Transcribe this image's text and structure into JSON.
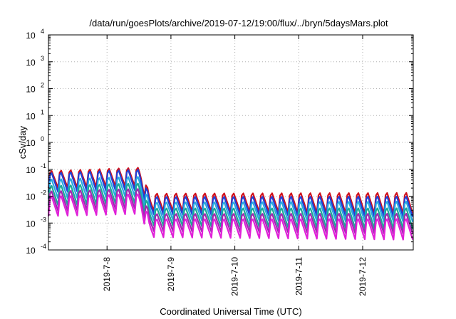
{
  "chart_data": {
    "type": "line",
    "title": "/data/run/goesPlots/archive/2019-07-12/19:00/flux/../bryn/5daysMars.plot",
    "xlabel": "Coordinated Universal Time (UTC)",
    "ylabel": "cSv/day",
    "yscale": "log",
    "ylim": [
      0.0001,
      10000
    ],
    "y_ticks": [
      {
        "base": "10",
        "exp": "-4",
        "value": 0.0001
      },
      {
        "base": "10",
        "exp": "-3",
        "value": 0.001
      },
      {
        "base": "10",
        "exp": "-2",
        "value": 0.01
      },
      {
        "base": "10",
        "exp": "-1",
        "value": 0.1
      },
      {
        "base": "10",
        "exp": "0",
        "value": 1
      },
      {
        "base": "10",
        "exp": "1",
        "value": 10
      },
      {
        "base": "10",
        "exp": "2",
        "value": 100
      },
      {
        "base": "10",
        "exp": "3",
        "value": 1000
      },
      {
        "base": "10",
        "exp": "4",
        "value": 10000
      }
    ],
    "xlim": [
      "2019-07-07T02:00",
      "2019-07-12T19:00"
    ],
    "x_ticks": [
      {
        "label": "2019-7-8",
        "value": "2019-07-08"
      },
      {
        "label": "2019-7-9",
        "value": "2019-07-09"
      },
      {
        "label": "2019-7-10",
        "value": "2019-07-10"
      },
      {
        "label": "2019-7-11",
        "value": "2019-07-11"
      },
      {
        "label": "2019-7-12",
        "value": "2019-07-12"
      }
    ],
    "grid": true,
    "series": [
      {
        "color": "#d0101c",
        "x": [
          "2019-07-07T02:00",
          "2019-07-08T12:30",
          "2019-07-08T16:00",
          "2019-07-12T19:00"
        ],
        "peak": [
          0.11,
          0.15,
          0.016,
          0.018
        ],
        "trough": [
          0.02,
          0.024,
          0.0028,
          0.0022
        ]
      },
      {
        "color": "#1f3fd6",
        "x": [
          "2019-07-07T02:00",
          "2019-07-08T12:30",
          "2019-07-08T16:00",
          "2019-07-12T19:00"
        ],
        "peak": [
          0.095,
          0.13,
          0.012,
          0.013
        ],
        "trough": [
          0.014,
          0.017,
          0.0021,
          0.0017
        ]
      },
      {
        "color": "#26a9e0",
        "x": [
          "2019-07-07T02:00",
          "2019-07-08T12:30",
          "2019-07-08T16:00",
          "2019-07-12T19:00"
        ],
        "peak": [
          0.055,
          0.07,
          0.0075,
          0.0085
        ],
        "trough": [
          0.008,
          0.01,
          0.0013,
          0.0011
        ]
      },
      {
        "color": "#1aa898",
        "x": [
          "2019-07-07T02:00",
          "2019-07-08T12:30",
          "2019-07-08T16:00",
          "2019-07-12T19:00"
        ],
        "peak": [
          0.032,
          0.04,
          0.0045,
          0.0048
        ],
        "trough": [
          0.0045,
          0.0055,
          0.0008,
          0.0006
        ]
      },
      {
        "color": "#a028b0",
        "x": [
          "2019-07-07T02:00",
          "2019-07-08T12:30",
          "2019-07-08T16:00",
          "2019-07-12T19:00"
        ],
        "peak": [
          0.02,
          0.025,
          0.0028,
          0.003
        ],
        "trough": [
          0.0028,
          0.0035,
          0.0005,
          0.0004
        ]
      },
      {
        "color": "#e020d8",
        "x": [
          "2019-07-07T02:00",
          "2019-07-08T12:30",
          "2019-07-08T16:00",
          "2019-07-12T19:00"
        ],
        "peak": [
          0.013,
          0.016,
          0.0018,
          0.0019
        ],
        "trough": [
          0.0018,
          0.0022,
          0.0003,
          0.00024
        ]
      }
    ],
    "oscillation_period_hours": 3.6
  }
}
